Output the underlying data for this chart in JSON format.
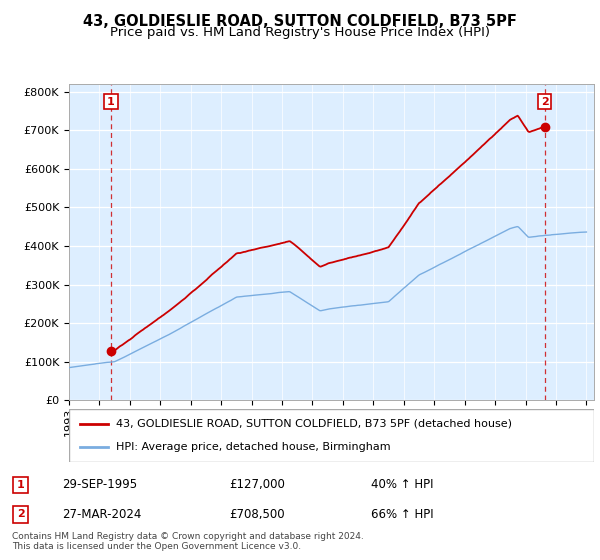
{
  "title": "43, GOLDIESLIE ROAD, SUTTON COLDFIELD, B73 5PF",
  "subtitle": "Price paid vs. HM Land Registry's House Price Index (HPI)",
  "ylim": [
    0,
    820000
  ],
  "yticks": [
    0,
    100000,
    200000,
    300000,
    400000,
    500000,
    600000,
    700000,
    800000
  ],
  "ytick_labels": [
    "£0",
    "£100K",
    "£200K",
    "£300K",
    "£400K",
    "£500K",
    "£600K",
    "£700K",
    "£800K"
  ],
  "sale1_year": 1995.75,
  "sale1_price": 127000,
  "sale2_year": 2024.25,
  "sale2_price": 708500,
  "line_color_price": "#cc0000",
  "line_color_hpi": "#7aade0",
  "bg_color": "#ddeeff",
  "grid_color": "#ffffff",
  "legend_label_price": "43, GOLDIESLIE ROAD, SUTTON COLDFIELD, B73 5PF (detached house)",
  "legend_label_hpi": "HPI: Average price, detached house, Birmingham",
  "annotation1": [
    "1",
    "29-SEP-1995",
    "£127,000",
    "40% ↑ HPI"
  ],
  "annotation2": [
    "2",
    "27-MAR-2024",
    "£708,500",
    "66% ↑ HPI"
  ],
  "footnote": "Contains HM Land Registry data © Crown copyright and database right 2024.\nThis data is licensed under the Open Government Licence v3.0.",
  "title_fontsize": 10.5,
  "subtitle_fontsize": 9.5,
  "tick_fontsize": 8,
  "legend_fontsize": 8,
  "xlim_start": 1993.0,
  "xlim_end": 2027.5
}
